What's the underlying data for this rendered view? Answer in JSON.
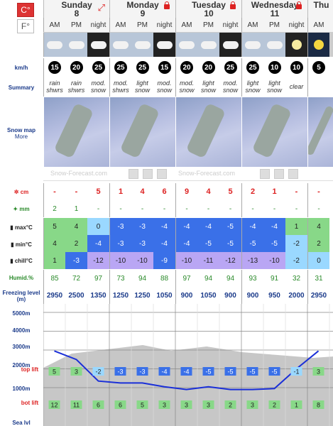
{
  "units": {
    "celsius": "C°",
    "fahrenheit": "F°"
  },
  "days": [
    {
      "name": "Sunday",
      "num": "8",
      "icon": "expand-icon"
    },
    {
      "name": "Monday",
      "num": "9",
      "icon": "lock-icon"
    },
    {
      "name": "Tuesday",
      "num": "10",
      "icon": "lock-icon"
    },
    {
      "name": "Wednesday",
      "num": "11",
      "icon": "lock-icon"
    },
    {
      "name": "Thu",
      "num": "",
      "icon": ""
    }
  ],
  "periods": [
    "AM",
    "PM",
    "night",
    "AM",
    "PM",
    "night",
    "AM",
    "PM",
    "night",
    "AM",
    "PM",
    "night",
    "AM"
  ],
  "weather_icons": [
    "cloud-rain-sun",
    "cloud-rain",
    "cloud-snow-night",
    "cloud-snow",
    "cloud-snow",
    "cloud-snow-night",
    "cloud-snow",
    "cloud-snow",
    "cloud-snow-night",
    "cloud-snow",
    "cloud-snow",
    "moon-clear",
    "sun-clear"
  ],
  "labels": {
    "wind": "km/h",
    "summary": "Summary",
    "snowmap": "Snow map",
    "more": "More",
    "snow": "cm",
    "rain": "mm",
    "max": "max°C",
    "min": "min°C",
    "chill": "chill°C",
    "humid": "Humid.%",
    "freezing": "Freezing level (m)",
    "alt5000": "5000m",
    "alt4000": "4000m",
    "alt3000": "3000m",
    "alt2000": "2000m",
    "alt1000": "1000m",
    "sealvl": "Sea lvl",
    "toplift": "top lift",
    "botlift": "bot lift"
  },
  "watermark": "Snow-Forecast.com",
  "wind": [
    "15",
    "20",
    "25",
    "25",
    "25",
    "15",
    "20",
    "20",
    "25",
    "25",
    "10",
    "10",
    "5"
  ],
  "summary": [
    "rain shwrs",
    "rain shwrs",
    "mod. snow",
    "mod. shwrs",
    "light snow",
    "mod. snow",
    "mod. snow",
    "light snow",
    "mod. snow",
    "light snow",
    "light snow",
    "clear",
    ""
  ],
  "snow": [
    "-",
    "-",
    "5",
    "1",
    "4",
    "6",
    "9",
    "4",
    "5",
    "2",
    "1",
    "-",
    "-"
  ],
  "rain": [
    "2",
    "1",
    "-",
    "-",
    "-",
    "-",
    "-",
    "-",
    "-",
    "-",
    "-",
    "-",
    "-"
  ],
  "max": [
    "5",
    "4",
    "0",
    "-3",
    "-3",
    "-4",
    "-4",
    "-4",
    "-5",
    "-4",
    "-4",
    "1",
    "4"
  ],
  "min": [
    "4",
    "2",
    "-4",
    "-3",
    "-3",
    "-4",
    "-4",
    "-5",
    "-5",
    "-5",
    "-5",
    "-2",
    "2"
  ],
  "chill": [
    "1",
    "-3",
    "-12",
    "-10",
    "-10",
    "-9",
    "-10",
    "-11",
    "-12",
    "-13",
    "-10",
    "-2",
    "0"
  ],
  "humid": [
    "85",
    "72",
    "97",
    "73",
    "94",
    "88",
    "97",
    "94",
    "94",
    "93",
    "91",
    "32",
    "31"
  ],
  "freezing": [
    "2950",
    "2500",
    "1350",
    "1250",
    "1250",
    "1050",
    "900",
    "1050",
    "900",
    "900",
    "950",
    "2000",
    "2950"
  ],
  "top_lift": [
    "5",
    "3",
    "-2",
    "-3",
    "-3",
    "-4",
    "-4",
    "-5",
    "-5",
    "-5",
    "-5",
    "-1",
    "3"
  ],
  "bot_lift": [
    "12",
    "11",
    "6",
    "6",
    "5",
    "3",
    "3",
    "3",
    "2",
    "3",
    "2",
    "1",
    "8"
  ],
  "colors": {
    "red": "#d22",
    "blue": "#1a3a8a",
    "warm": "#88d888",
    "cold1": "#9ad8ff",
    "cold2": "#3a70e8",
    "cold3": "#b9a6f4"
  }
}
